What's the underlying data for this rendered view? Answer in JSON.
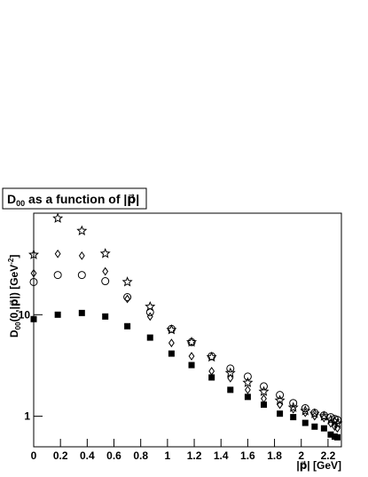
{
  "chart_data": {
    "type": "scatter",
    "title": {
      "main": "D",
      "sub": "00",
      "rest": " as a function of |p⃗|"
    },
    "ylabel": {
      "main": "D",
      "sub": "00",
      "mid": "(0,|p⃗|) [GeV",
      "sup": "-2",
      "end": "]"
    },
    "xlabel": "|p⃗| [GeV]",
    "log_y": true,
    "xlim": [
      0,
      2.3
    ],
    "ylim": [
      0.5,
      100
    ],
    "xticks": [
      0,
      0.2,
      0.4,
      0.6,
      0.8,
      1,
      1.2,
      1.4,
      1.6,
      1.8,
      2,
      2.2
    ],
    "yticks": [
      1,
      10
    ],
    "x": [
      0,
      0.18,
      0.36,
      0.535,
      0.7,
      0.87,
      1.03,
      1.18,
      1.33,
      1.47,
      1.6,
      1.72,
      1.84,
      1.94,
      2.03,
      2.1,
      2.17,
      2.22,
      2.25,
      2.27
    ],
    "series": [
      {
        "marker": "square",
        "color": "#000000",
        "values": [
          9.05,
          10,
          10.4,
          9.6,
          7.7,
          5.95,
          4.14,
          3.19,
          2.41,
          1.82,
          1.55,
          1.3,
          1.06,
          0.98,
          0.86,
          0.79,
          0.76,
          0.66,
          0.63,
          0.62
        ]
      },
      {
        "marker": "circle",
        "color": "#000000",
        "values": [
          21,
          24.6,
          24.6,
          21.4,
          14.9,
          10.6,
          7.25,
          5.37,
          3.9,
          2.95,
          2.46,
          1.97,
          1.62,
          1.35,
          1.2,
          1.08,
          1.02,
          0.98,
          0.94,
          0.92
        ]
      },
      {
        "marker": "diamond",
        "color": "#000000",
        "values": [
          25.6,
          39.8,
          38.1,
          26.7,
          14.3,
          9.6,
          5.27,
          3.9,
          2.78,
          2.37,
          1.82,
          1.49,
          1.3,
          1.17,
          1.08,
          1.0,
          0.96,
          0.85,
          0.79,
          0.76
        ]
      },
      {
        "marker": "star",
        "color": "#000000",
        "values": [
          39,
          89,
          67,
          40,
          21,
          12,
          7.1,
          5.37,
          3.82,
          2.67,
          2.14,
          1.75,
          1.43,
          1.22,
          1.13,
          1.06,
          1.0,
          0.92,
          0.89,
          0.85
        ]
      }
    ]
  }
}
